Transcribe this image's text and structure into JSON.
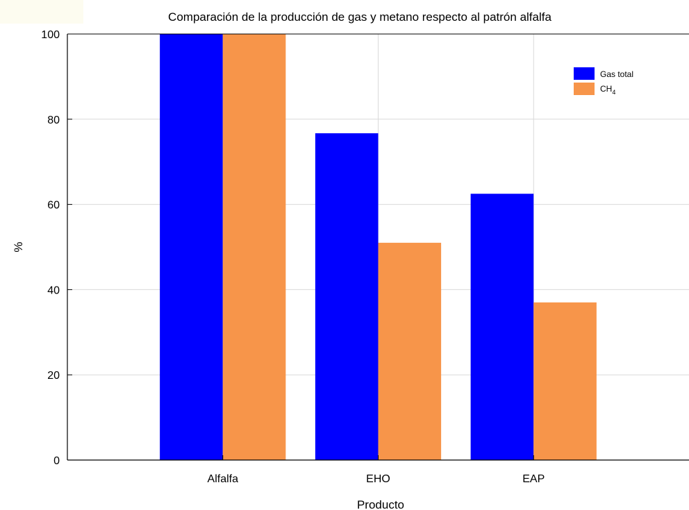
{
  "chart_data": {
    "type": "bar",
    "title": "Comparación de la producción de gas y metano respecto al patrón alfalfa",
    "xlabel": "Producto",
    "ylabel": "%",
    "categories": [
      "Alfalfa",
      "EHO",
      "EAP"
    ],
    "series": [
      {
        "name": "Gas total",
        "values": [
          100,
          76.7,
          62.5
        ]
      },
      {
        "name": "CH4",
        "name_main": "CH",
        "name_sub": "4",
        "values": [
          100,
          51.0,
          37.0
        ]
      }
    ],
    "ylim": [
      0,
      100
    ],
    "yticks": [
      0,
      20,
      40,
      60,
      80,
      100
    ],
    "grid": true,
    "legend_position": "top-right",
    "colors": {
      "Gas total": "#0000FF",
      "CH4": "#F7954A",
      "grid": "#D9D9D9",
      "background": "#FFFFFF"
    }
  }
}
